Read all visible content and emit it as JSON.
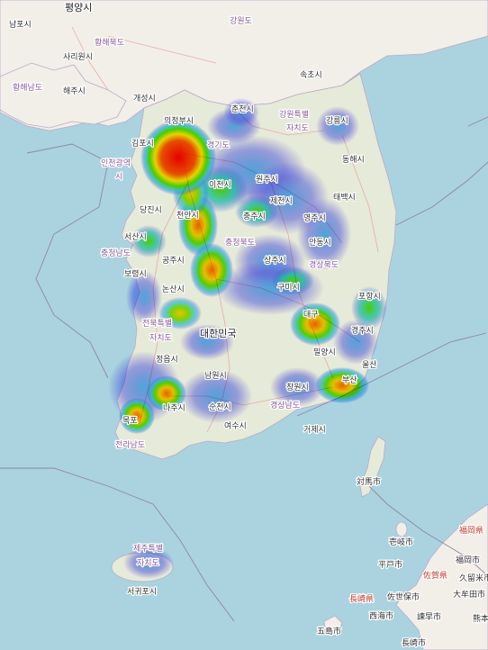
{
  "map": {
    "type": "heatmap",
    "country_label": "대한민국",
    "labels": [
      {
        "id": "pyongyang",
        "text": "평양시",
        "cls": "big"
      },
      {
        "id": "nampo",
        "text": "남포시",
        "cls": ""
      },
      {
        "id": "hwanghae-n",
        "text": "황해북도",
        "cls": "region"
      },
      {
        "id": "sariwon",
        "text": "사리원시",
        "cls": ""
      },
      {
        "id": "hwanghae-s",
        "text": "황해남도",
        "cls": "region"
      },
      {
        "id": "haeju",
        "text": "해주시",
        "cls": ""
      },
      {
        "id": "gangwon-n",
        "text": "강원도",
        "cls": "region"
      },
      {
        "id": "sokcho",
        "text": "속초시",
        "cls": ""
      },
      {
        "id": "kaesong",
        "text": "개성시",
        "cls": ""
      },
      {
        "id": "uijeongbu",
        "text": "의정부시",
        "cls": ""
      },
      {
        "id": "chuncheon",
        "text": "춘천시",
        "cls": ""
      },
      {
        "id": "gangwon-s1",
        "text": "강원특별",
        "cls": "region"
      },
      {
        "id": "gangwon-s2",
        "text": "자치도",
        "cls": "region"
      },
      {
        "id": "gangneung",
        "text": "강릉시",
        "cls": ""
      },
      {
        "id": "gimpo",
        "text": "김포시",
        "cls": ""
      },
      {
        "id": "gyeonggi",
        "text": "경기도",
        "cls": "region"
      },
      {
        "id": "incheon1",
        "text": "인천광역",
        "cls": "region"
      },
      {
        "id": "incheon2",
        "text": "시",
        "cls": "region"
      },
      {
        "id": "wonju",
        "text": "원주시",
        "cls": ""
      },
      {
        "id": "donghae",
        "text": "동해시",
        "cls": ""
      },
      {
        "id": "icheon",
        "text": "이천시",
        "cls": ""
      },
      {
        "id": "jecheon",
        "text": "제천시",
        "cls": ""
      },
      {
        "id": "taebaek",
        "text": "태백시",
        "cls": ""
      },
      {
        "id": "dangjin",
        "text": "당진시",
        "cls": ""
      },
      {
        "id": "cheonan",
        "text": "천안시",
        "cls": ""
      },
      {
        "id": "chungju",
        "text": "충주시",
        "cls": ""
      },
      {
        "id": "yeongju",
        "text": "영주시",
        "cls": ""
      },
      {
        "id": "seosan",
        "text": "서산시",
        "cls": ""
      },
      {
        "id": "chungbuk",
        "text": "충청북도",
        "cls": "region"
      },
      {
        "id": "andong",
        "text": "안동시",
        "cls": ""
      },
      {
        "id": "chungnam",
        "text": "충청남도",
        "cls": "region"
      },
      {
        "id": "gongju",
        "text": "공주시",
        "cls": ""
      },
      {
        "id": "sangju",
        "text": "상주시",
        "cls": ""
      },
      {
        "id": "gyeongbuk",
        "text": "경상북도",
        "cls": "region"
      },
      {
        "id": "boryeong",
        "text": "보령시",
        "cls": ""
      },
      {
        "id": "nonsan",
        "text": "논산시",
        "cls": ""
      },
      {
        "id": "gumi",
        "text": "구미시",
        "cls": ""
      },
      {
        "id": "pohang",
        "text": "포항시",
        "cls": ""
      },
      {
        "id": "jeonbuk1",
        "text": "전북특별",
        "cls": "region"
      },
      {
        "id": "jeonbuk2",
        "text": "자치도",
        "cls": "region"
      },
      {
        "id": "daegu",
        "text": "대구",
        "cls": ""
      },
      {
        "id": "gyeongju",
        "text": "경주시",
        "cls": ""
      },
      {
        "id": "miryang",
        "text": "밀양시",
        "cls": ""
      },
      {
        "id": "ulsan",
        "text": "울산",
        "cls": ""
      },
      {
        "id": "jeongeup",
        "text": "정읍시",
        "cls": ""
      },
      {
        "id": "namwon",
        "text": "남원시",
        "cls": ""
      },
      {
        "id": "changwon",
        "text": "창원시",
        "cls": ""
      },
      {
        "id": "busan",
        "text": "부산",
        "cls": ""
      },
      {
        "id": "naju",
        "text": "나주시",
        "cls": ""
      },
      {
        "id": "suncheon",
        "text": "순천시",
        "cls": ""
      },
      {
        "id": "gyeongnam",
        "text": "경상남도",
        "cls": "region"
      },
      {
        "id": "mokpo",
        "text": "목포",
        "cls": ""
      },
      {
        "id": "yeosu",
        "text": "여수시",
        "cls": ""
      },
      {
        "id": "geoje",
        "text": "거제시",
        "cls": ""
      },
      {
        "id": "jeonnam",
        "text": "전라남도",
        "cls": "region"
      },
      {
        "id": "tsushima",
        "text": "対馬市",
        "cls": ""
      },
      {
        "id": "jeju1",
        "text": "제주특별",
        "cls": "region"
      },
      {
        "id": "jeju2",
        "text": "자치도",
        "cls": "region"
      },
      {
        "id": "seogwipo",
        "text": "서귀포시",
        "cls": ""
      },
      {
        "id": "iki",
        "text": "壱岐市",
        "cls": ""
      },
      {
        "id": "fukuoka-pref",
        "text": "福岡県",
        "cls": "jp-region"
      },
      {
        "id": "fukuoka",
        "text": "福岡市",
        "cls": ""
      },
      {
        "id": "hirado",
        "text": "平戸市",
        "cls": ""
      },
      {
        "id": "saga",
        "text": "佐賀県",
        "cls": "jp-region"
      },
      {
        "id": "kurume",
        "text": "久留米市",
        "cls": ""
      },
      {
        "id": "omuta",
        "text": "大牟田市",
        "cls": ""
      },
      {
        "id": "nagasaki-pref",
        "text": "長崎県",
        "cls": "jp-region"
      },
      {
        "id": "sasebo",
        "text": "佐世保市",
        "cls": ""
      },
      {
        "id": "saikai",
        "text": "西海市",
        "cls": ""
      },
      {
        "id": "isahaya",
        "text": "諫早市",
        "cls": ""
      },
      {
        "id": "kumamoto",
        "text": "熊本",
        "cls": ""
      },
      {
        "id": "goto",
        "text": "五島市",
        "cls": ""
      },
      {
        "id": "nagasaki",
        "text": "長崎市",
        "cls": ""
      }
    ]
  }
}
